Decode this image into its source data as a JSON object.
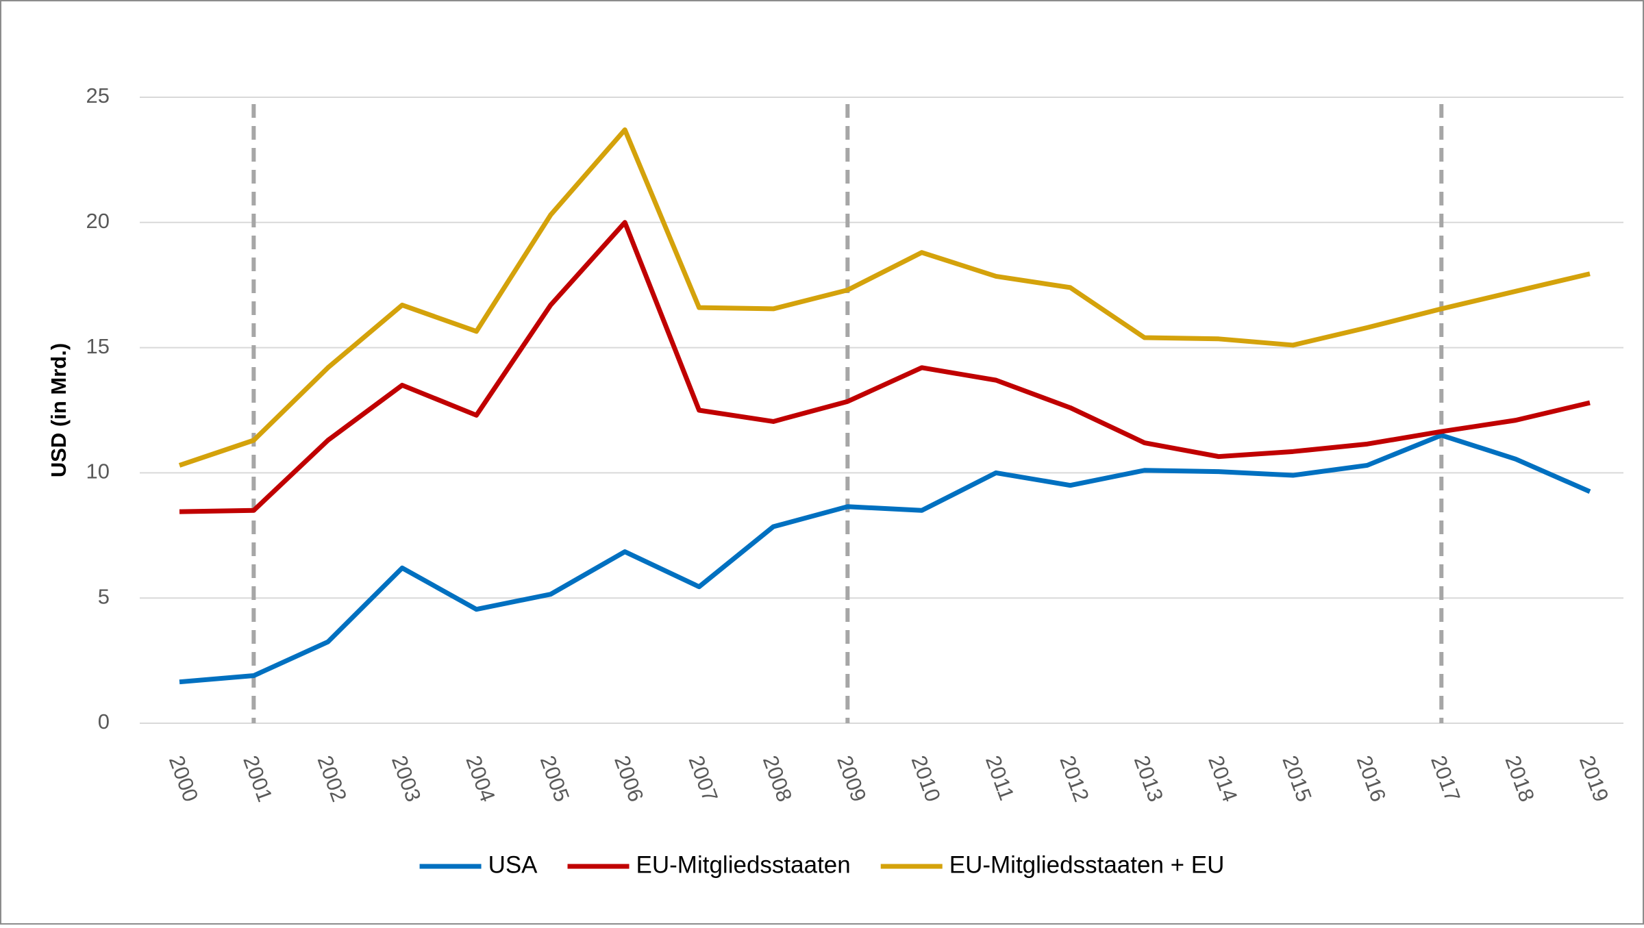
{
  "chart_data": {
    "type": "line",
    "y_label": "USD (in Mrd.)",
    "categories": [
      "2000",
      "2001",
      "2002",
      "2003",
      "2004",
      "2005",
      "2006",
      "2007",
      "2008",
      "2009",
      "2010",
      "2011",
      "2012",
      "2013",
      "2014",
      "2015",
      "2016",
      "2017",
      "2018",
      "2019"
    ],
    "series": [
      {
        "name": "USA",
        "color": "#0070c0",
        "values": [
          1.65,
          1.9,
          3.25,
          6.2,
          4.55,
          5.15,
          6.85,
          5.45,
          7.85,
          8.65,
          8.5,
          10.0,
          9.5,
          10.1,
          10.05,
          9.9,
          10.3,
          11.5,
          10.55,
          9.25
        ]
      },
      {
        "name": "EU-Mitgliedsstaaten",
        "color": "#c00000",
        "values": [
          8.45,
          8.5,
          11.3,
          13.5,
          12.3,
          16.7,
          20.0,
          12.5,
          12.05,
          12.85,
          14.2,
          13.7,
          12.6,
          11.2,
          10.65,
          10.85,
          11.15,
          11.65,
          12.1,
          12.8
        ]
      },
      {
        "name": "EU-Mitgliedsstaaten + EU",
        "color": "#d4a20b",
        "values": [
          10.3,
          11.3,
          14.2,
          16.7,
          15.65,
          20.3,
          23.7,
          16.6,
          16.55,
          17.3,
          18.8,
          17.85,
          17.4,
          15.4,
          15.35,
          15.1,
          15.8,
          16.55,
          17.25,
          17.95
        ]
      }
    ],
    "ylim": [
      0,
      25
    ],
    "yticks": [
      0,
      5,
      10,
      15,
      20,
      25
    ],
    "grid": true,
    "vlines": [
      "2001",
      "2009",
      "2017"
    ],
    "legend": "bottom"
  }
}
